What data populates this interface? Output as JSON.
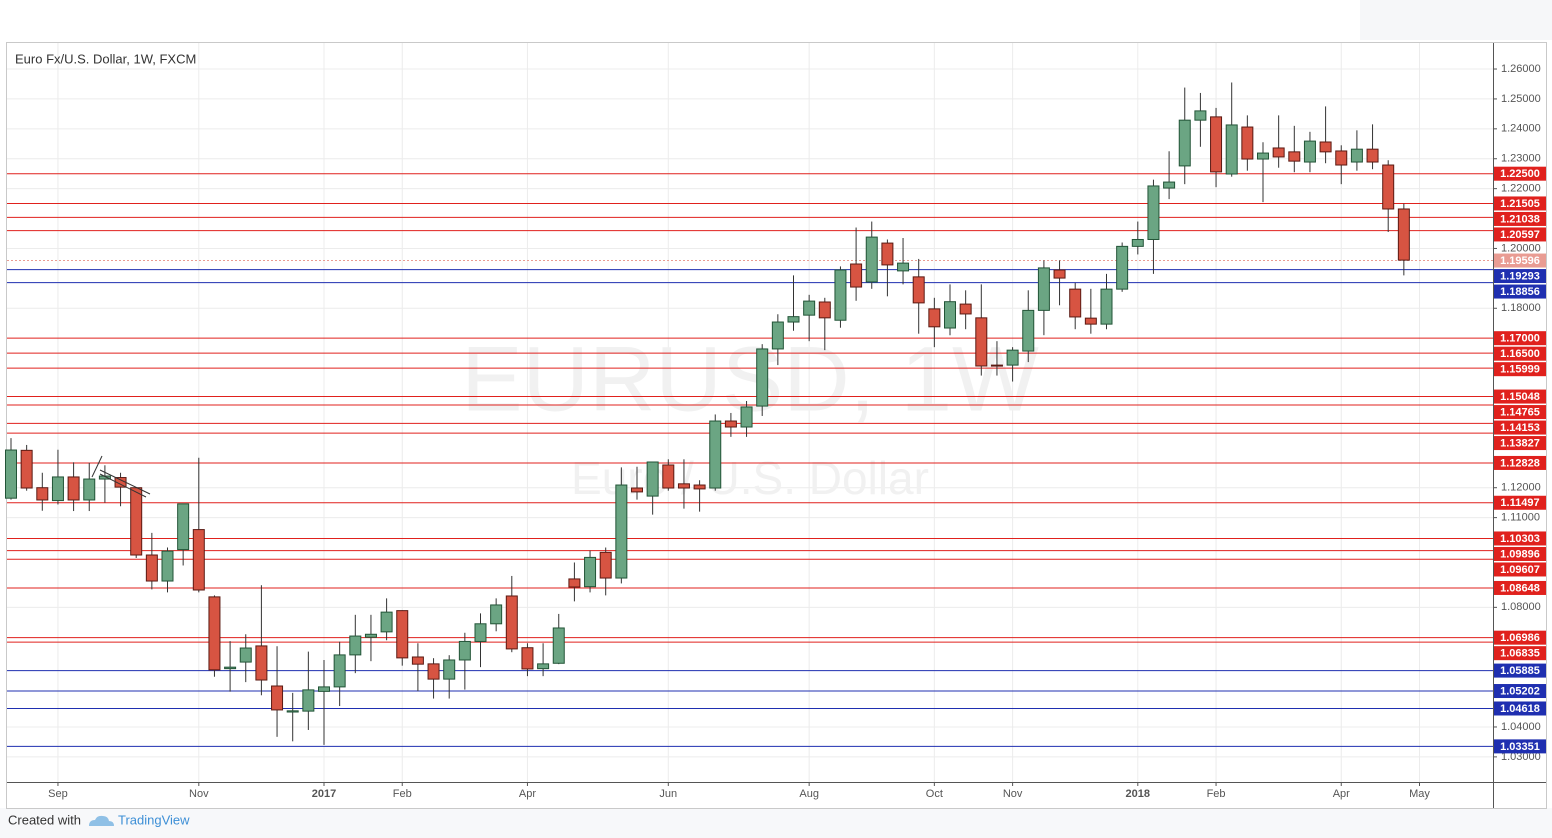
{
  "chart_data": {
    "type": "candlestick",
    "title": "Euro Fx/U.S. Dollar, 1W, FXCM",
    "watermark": "EURUSD, 1W",
    "watermark_subtitle": "Euro / U.S. Dollar",
    "categories": [
      null,
      null,
      null,
      "Sep",
      null,
      null,
      null,
      null,
      null,
      null,
      null,
      null,
      "Nov",
      null,
      null,
      null,
      null,
      null,
      null,
      null,
      "2017",
      null,
      null,
      null,
      null,
      "Feb",
      null,
      null,
      null,
      null,
      null,
      null,
      null,
      "Apr",
      null,
      null,
      null,
      null,
      null,
      null,
      null,
      null,
      "Jun",
      null,
      null,
      null,
      null,
      null,
      null,
      null,
      null,
      "Aug",
      null,
      null,
      null,
      null,
      null,
      null,
      null,
      "Oct",
      null,
      null,
      null,
      null,
      "Nov",
      null,
      null,
      null,
      null,
      null,
      null,
      null,
      "2018",
      null,
      null,
      null,
      null,
      "Feb",
      null,
      null,
      null,
      null,
      null,
      null,
      null,
      "Apr",
      null,
      null,
      null,
      null,
      "May"
    ],
    "open": [
      1.1165,
      1.1325,
      1.12,
      1.1157,
      1.1236,
      1.1159,
      1.1229,
      1.1234,
      1.12,
      1.0975,
      1.0888,
      1.0993,
      1.106,
      1.0835,
      1.0595,
      1.0617,
      1.0671,
      1.0537,
      1.045,
      1.0453,
      1.0519,
      1.0534,
      1.0641,
      1.07,
      1.0718,
      1.0789,
      1.0634,
      1.0611,
      1.056,
      1.0624,
      1.0686,
      1.0745,
      1.0838,
      1.0665,
      1.0595,
      1.0613,
      1.0895,
      1.0869,
      1.0984,
      1.0898,
      1.1199,
      1.1172,
      1.1276,
      1.1213,
      1.1209,
      1.1199,
      1.1423,
      1.1403,
      1.1473,
      1.1664,
      1.1754,
      1.1777,
      1.1821,
      1.176,
      1.1948,
      1.1888,
      1.2018,
      1.1925,
      1.1905,
      1.1798,
      1.1734,
      1.1814,
      1.1768,
      1.161,
      1.161,
      1.1657,
      1.1793,
      1.1928,
      1.1864,
      1.1767,
      1.1747,
      1.1864,
      1.2007,
      1.203,
      1.2202,
      1.2276,
      1.2429,
      1.244,
      1.2249,
      1.2406,
      1.2299,
      1.2336,
      1.2323,
      1.2289,
      1.2356,
      1.2326,
      1.2289,
      1.2332,
      1.2279,
      1.2132,
      null
    ],
    "high": [
      1.1366,
      1.1343,
      1.125,
      1.1327,
      1.1285,
      1.1283,
      1.1275,
      1.125,
      1.12,
      1.1049,
      1.1,
      1.1146,
      1.13,
      1.084,
      1.0687,
      1.071,
      1.0874,
      1.067,
      1.0514,
      1.0652,
      1.0624,
      1.0685,
      1.0775,
      1.0775,
      1.083,
      1.079,
      1.068,
      1.063,
      1.064,
      1.0715,
      1.078,
      1.083,
      1.0905,
      1.068,
      1.068,
      1.0778,
      1.095,
      1.099,
      1.1,
      1.1268,
      1.127,
      1.1285,
      1.1295,
      1.1295,
      1.1225,
      1.1445,
      1.145,
      1.149,
      1.168,
      1.178,
      1.191,
      1.1845,
      1.1835,
      1.194,
      1.207,
      1.209,
      1.203,
      1.2035,
      1.1965,
      1.1835,
      1.188,
      1.186,
      1.188,
      1.169,
      1.167,
      1.186,
      1.196,
      1.196,
      1.1885,
      1.1865,
      1.1915,
      1.202,
      1.209,
      1.223,
      1.2325,
      1.2538,
      1.252,
      1.247,
      1.2555,
      1.2445,
      1.2355,
      1.2445,
      1.241,
      1.239,
      1.2475,
      1.2345,
      1.2395,
      1.2415,
      1.2295,
      1.215,
      null
    ],
    "low": [
      1.116,
      1.119,
      1.1123,
      1.1144,
      1.1122,
      1.1122,
      1.115,
      1.1138,
      1.0965,
      1.086,
      1.085,
      1.094,
      1.085,
      1.0568,
      1.0518,
      1.055,
      1.0506,
      1.0367,
      1.0352,
      1.039,
      1.034,
      1.047,
      1.058,
      1.062,
      1.069,
      1.0605,
      1.052,
      1.0495,
      1.0495,
      1.0525,
      1.06,
      1.072,
      1.065,
      1.057,
      1.057,
      1.061,
      1.082,
      1.085,
      1.084,
      1.088,
      1.116,
      1.111,
      1.119,
      1.113,
      1.112,
      1.119,
      1.137,
      1.137,
      1.144,
      1.161,
      1.1725,
      1.169,
      1.166,
      1.1735,
      1.1825,
      1.1865,
      1.184,
      1.188,
      1.1715,
      1.167,
      1.171,
      1.173,
      1.1575,
      1.1575,
      1.1555,
      1.162,
      1.171,
      1.181,
      1.173,
      1.1715,
      1.173,
      1.1855,
      1.198,
      1.1915,
      1.2165,
      1.2215,
      1.234,
      1.2205,
      1.224,
      1.226,
      1.2155,
      1.227,
      1.2255,
      1.2255,
      1.2285,
      1.2215,
      1.226,
      1.2265,
      1.2055,
      1.191,
      null
    ],
    "close": [
      1.1326,
      1.1199,
      1.1159,
      1.1236,
      1.1159,
      1.1229,
      1.1239,
      1.1202,
      1.0975,
      1.0888,
      1.0988,
      1.1146,
      1.0858,
      1.0591,
      1.06,
      1.0664,
      1.0557,
      1.0457,
      1.0454,
      1.0524,
      1.0534,
      1.0641,
      1.0704,
      1.071,
      1.0784,
      1.0631,
      1.061,
      1.056,
      1.0624,
      1.0686,
      1.0745,
      1.0808,
      1.0661,
      1.0594,
      1.0611,
      1.0731,
      1.0868,
      1.0967,
      1.0898,
      1.1209,
      1.1186,
      1.1286,
      1.1199,
      1.1199,
      1.1196,
      1.1423,
      1.1403,
      1.147,
      1.1664,
      1.1754,
      1.1772,
      1.1824,
      1.1768,
      1.1928,
      1.1871,
      1.2038,
      1.1945,
      1.1951,
      1.1818,
      1.1738,
      1.1822,
      1.1781,
      1.1607,
      1.1607,
      1.166,
      1.1793,
      1.1935,
      1.1901,
      1.1771,
      1.1747,
      1.1864,
      1.2007,
      1.203,
      1.2209,
      1.2222,
      1.2429,
      1.246,
      1.2256,
      1.2413,
      1.2299,
      1.2319,
      1.2306,
      1.2292,
      1.2359,
      1.2323,
      1.2279,
      1.2332,
      1.2289,
      1.2132,
      1.1961,
      null
    ],
    "up_color": "#6ba583",
    "down_color": "#d75442",
    "up_border": "#225437",
    "down_border": "#5b1a13",
    "ylim": [
      1.0216,
      1.2687
    ],
    "yticks": [
      {
        "value": 1.26,
        "label": "1.26000"
      },
      {
        "value": 1.25,
        "label": "1.25000"
      },
      {
        "value": 1.24,
        "label": "1.24000"
      },
      {
        "value": 1.23,
        "label": "1.23000"
      },
      {
        "value": 1.22,
        "label": "1.22000"
      },
      {
        "value": 1.2,
        "label": "1.20000"
      },
      {
        "value": 1.18,
        "label": "1.18000"
      },
      {
        "value": 1.12,
        "label": "1.12000"
      },
      {
        "value": 1.11,
        "label": "1.11000"
      },
      {
        "value": 1.08,
        "label": "1.08000"
      },
      {
        "value": 1.04,
        "label": "1.04000"
      },
      {
        "value": 1.03,
        "label": "1.03000"
      }
    ],
    "grid": true,
    "levels": [
      {
        "value": 1.225,
        "label": "1.22500",
        "color": "#e0211d"
      },
      {
        "value": 1.21505,
        "label": "1.21505",
        "color": "#e0211d"
      },
      {
        "value": 1.21038,
        "label": "1.21038",
        "color": "#e0211d"
      },
      {
        "value": 1.20597,
        "label": "1.20597",
        "color": "#e0211d"
      },
      {
        "value": 1.19293,
        "label": "1.19293",
        "color": "#1f2fb0"
      },
      {
        "value": 1.18856,
        "label": "1.18856",
        "color": "#1f2fb0"
      },
      {
        "value": 1.17,
        "label": "1.17000",
        "color": "#e0211d"
      },
      {
        "value": 1.165,
        "label": "1.16500",
        "color": "#e0211d"
      },
      {
        "value": 1.15999,
        "label": "1.15999",
        "color": "#e0211d"
      },
      {
        "value": 1.15048,
        "label": "1.15048",
        "color": "#e0211d"
      },
      {
        "value": 1.14765,
        "label": "1.14765",
        "color": "#e0211d"
      },
      {
        "value": 1.14153,
        "label": "1.14153",
        "color": "#e0211d"
      },
      {
        "value": 1.13827,
        "label": "1.13827",
        "color": "#e0211d"
      },
      {
        "value": 1.12828,
        "label": "1.12828",
        "color": "#e0211d"
      },
      {
        "value": 1.11497,
        "label": "1.11497",
        "color": "#e0211d"
      },
      {
        "value": 1.10303,
        "label": "1.10303",
        "color": "#e0211d"
      },
      {
        "value": 1.09896,
        "label": "1.09896",
        "color": "#e0211d"
      },
      {
        "value": 1.09607,
        "label": "1.09607",
        "color": "#e0211d"
      },
      {
        "value": 1.08648,
        "label": "1.08648",
        "color": "#e0211d"
      },
      {
        "value": 1.06986,
        "label": "1.06986",
        "color": "#e0211d"
      },
      {
        "value": 1.06835,
        "label": "1.06835",
        "color": "#e0211d"
      },
      {
        "value": 1.05885,
        "label": "1.05885",
        "color": "#1f2fb0"
      },
      {
        "value": 1.05202,
        "label": "1.05202",
        "color": "#1f2fb0"
      },
      {
        "value": 1.04618,
        "label": "1.04618",
        "color": "#1f2fb0"
      },
      {
        "value": 1.03351,
        "label": "1.03351",
        "color": "#1f2fb0"
      }
    ],
    "last_price": {
      "value": 1.19596,
      "label": "1.19596",
      "color": "#e99c93"
    }
  },
  "footer": {
    "prefix": "Created with",
    "brand": "TradingView"
  }
}
